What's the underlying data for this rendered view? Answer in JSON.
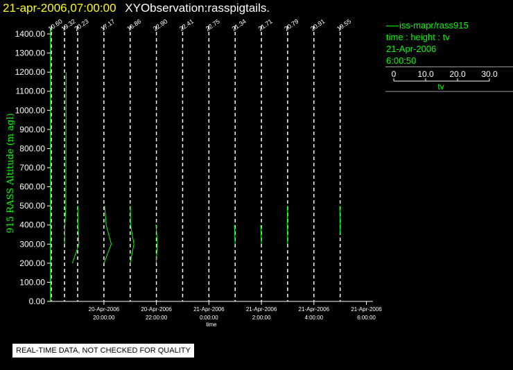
{
  "header": {
    "date": "21-apr-2006,07:00:00",
    "title": "XYObservation:rasspigtails."
  },
  "legend": {
    "series": "iss-mapr/rass915",
    "description": "time : height : tv",
    "date": "21-Apr-2006",
    "time": "6:00:50",
    "scale_ticks": [
      "0",
      "10.0",
      "20.0",
      "30.0"
    ],
    "scale_label": "tv"
  },
  "quality_note": "REAL-TIME DATA, NOT CHECKED FOR QUALITY",
  "colors": {
    "trace": "#00ff00",
    "axis": "#ffffff",
    "ylabel": "#00ff00",
    "header_date": "#ffff00",
    "dashed": "#ffffff"
  },
  "chart_data": {
    "type": "line",
    "title": "XYObservation:rasspigtails.",
    "ylabel": "915 RASS Altitude (m agl)",
    "xlabel": "time",
    "ylim": [
      0,
      1400
    ],
    "yticks": [
      "0.00",
      "100.00",
      "200.00",
      "300.00",
      "400.00",
      "500.00",
      "600.00",
      "700.00",
      "800.00",
      "900.00",
      "1000.00",
      "1100.00",
      "1200.00",
      "1300.00",
      "1400.00"
    ],
    "x_range_hours": [
      17.97,
      30.25
    ],
    "xticks": [
      {
        "hour": 20,
        "label_date": "20-Apr-2006",
        "label_time": "20:00:00"
      },
      {
        "hour": 22,
        "label_date": "20-Apr-2006",
        "label_time": "22:00:00"
      },
      {
        "hour": 24,
        "label_date": "21-Apr-2006",
        "label_time": "0:00:00"
      },
      {
        "hour": 26,
        "label_date": "21-Apr-2006",
        "label_time": "2:00:00"
      },
      {
        "hour": 28,
        "label_date": "21-Apr-2006",
        "label_time": "4:00:00"
      },
      {
        "hour": 30,
        "label_date": "21-Apr-2006",
        "label_time": "6:00:00"
      }
    ],
    "tv_scale_hours_per_unit": 0.0252,
    "profiles": [
      {
        "hour": 18.0,
        "label": "10.60",
        "points": []
      },
      {
        "hour": 18.5,
        "label": "19.32",
        "points": [
          [
            0,
            300
          ],
          [
            0.6,
            400
          ],
          [
            2.0,
            500
          ],
          [
            2.0,
            550
          ],
          [
            2.4,
            1200
          ]
        ]
      },
      {
        "hour": 19.0,
        "label": "20.23",
        "points": [
          [
            -8.1,
            200
          ],
          [
            2.0,
            300
          ],
          [
            0.4,
            400
          ],
          [
            0.2,
            500
          ]
        ]
      },
      {
        "hour": 20.0,
        "label": "17.17",
        "points": [
          [
            0.2,
            200
          ],
          [
            11.1,
            300
          ],
          [
            3.4,
            400
          ],
          [
            1.2,
            500
          ]
        ]
      },
      {
        "hour": 21.0,
        "label": "16.86",
        "points": [
          [
            0,
            200
          ],
          [
            5.7,
            300
          ],
          [
            0.6,
            400
          ],
          [
            0.4,
            500
          ]
        ]
      },
      {
        "hour": 22.0,
        "label": "22.90",
        "points": [
          [
            -0.4,
            200
          ],
          [
            1.5,
            300
          ],
          [
            -0.5,
            400
          ],
          [
            -1.5,
            400
          ]
        ]
      },
      {
        "hour": 23.0,
        "label": "22.41",
        "points": []
      },
      {
        "hour": 24.0,
        "label": "22.75",
        "points": []
      },
      {
        "hour": 25.0,
        "label": "21.34",
        "points": [
          [
            -0.1,
            300
          ],
          [
            -1.0,
            400
          ]
        ]
      },
      {
        "hour": 26.0,
        "label": "21.71",
        "points": [
          [
            0,
            300
          ],
          [
            -1.0,
            400
          ]
        ]
      },
      {
        "hour": 27.0,
        "label": "20.79",
        "points": [
          [
            0,
            300
          ],
          [
            -0.6,
            400
          ],
          [
            -0.2,
            500
          ]
        ]
      },
      {
        "hour": 28.0,
        "label": "20.91",
        "points": []
      },
      {
        "hour": 29.0,
        "label": "19.55",
        "points": [
          [
            0,
            350
          ],
          [
            -0.5,
            500
          ]
        ]
      }
    ]
  }
}
